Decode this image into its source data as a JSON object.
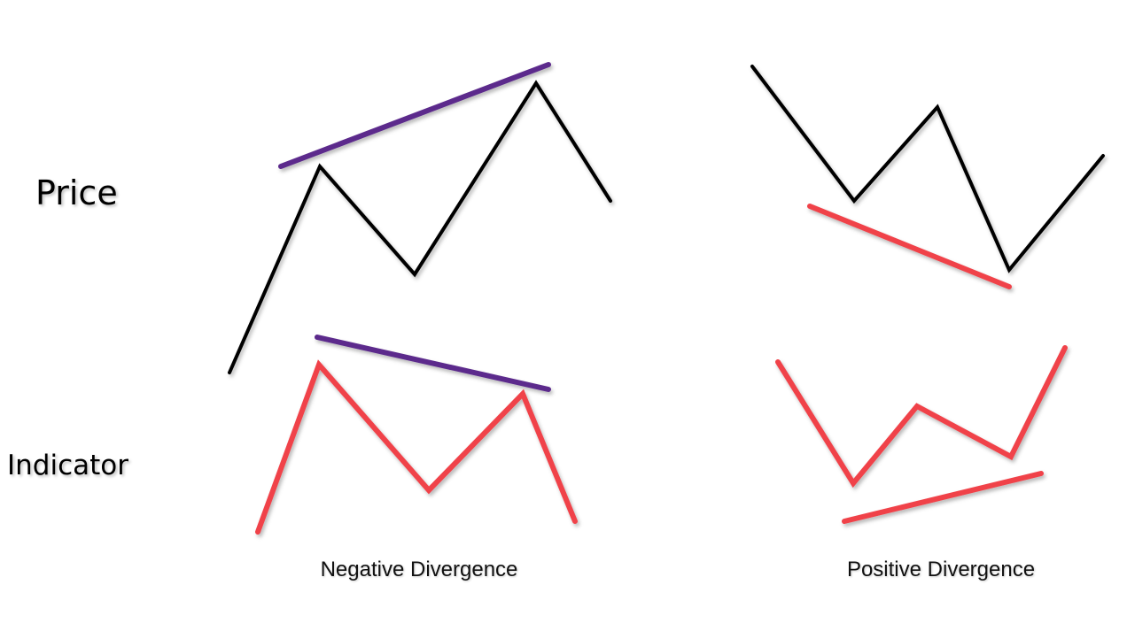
{
  "labels": {
    "price": "Price",
    "indicator": "Indicator"
  },
  "panels": {
    "negative": {
      "caption": "Negative Divergence"
    },
    "positive": {
      "caption": "Positive Divergence"
    }
  },
  "colors": {
    "price_line": "#000000",
    "indicator_line": "#f0424a",
    "negative_trendline": "#5b2a8c",
    "positive_trendline": "#f0424a"
  }
}
